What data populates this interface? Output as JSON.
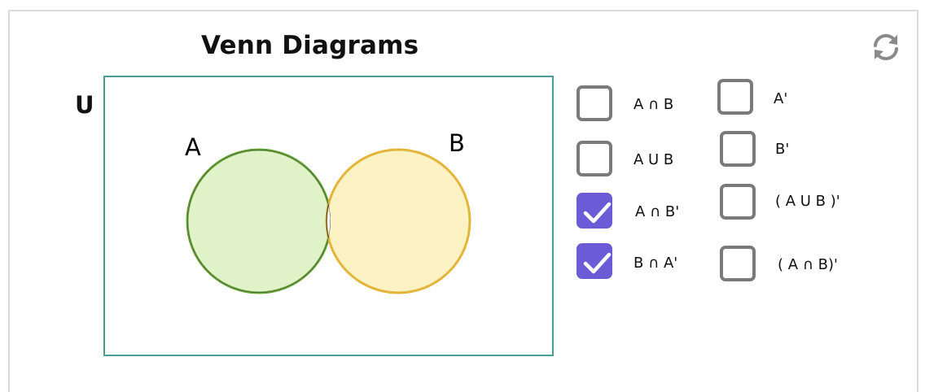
{
  "title": "Venn Diagrams",
  "universe_label": "U",
  "set_a_label": "A",
  "set_b_label": "B",
  "reset_icon": "refresh-icon",
  "colors": {
    "set_a_fill": "#dff2c8",
    "set_a_stroke": "#6aa63a",
    "set_b_fill": "#fdf2c4",
    "set_b_stroke": "#e3b53a",
    "universe_border": "#4a9c96",
    "checkbox_checked": "#6b5bd6",
    "checkbox_border": "#7a7a7a"
  },
  "options": [
    {
      "label": "A ∩ B",
      "checked": false
    },
    {
      "label": "A U B",
      "checked": false
    },
    {
      "label": "A ∩ B'",
      "checked": true
    },
    {
      "label": "B ∩ A'",
      "checked": true
    },
    {
      "label": "A'",
      "checked": false
    },
    {
      "label": "B'",
      "checked": false
    },
    {
      "label": "( A U B )'",
      "checked": false
    },
    {
      "label": "( A ∩ B)'",
      "checked": false
    }
  ]
}
